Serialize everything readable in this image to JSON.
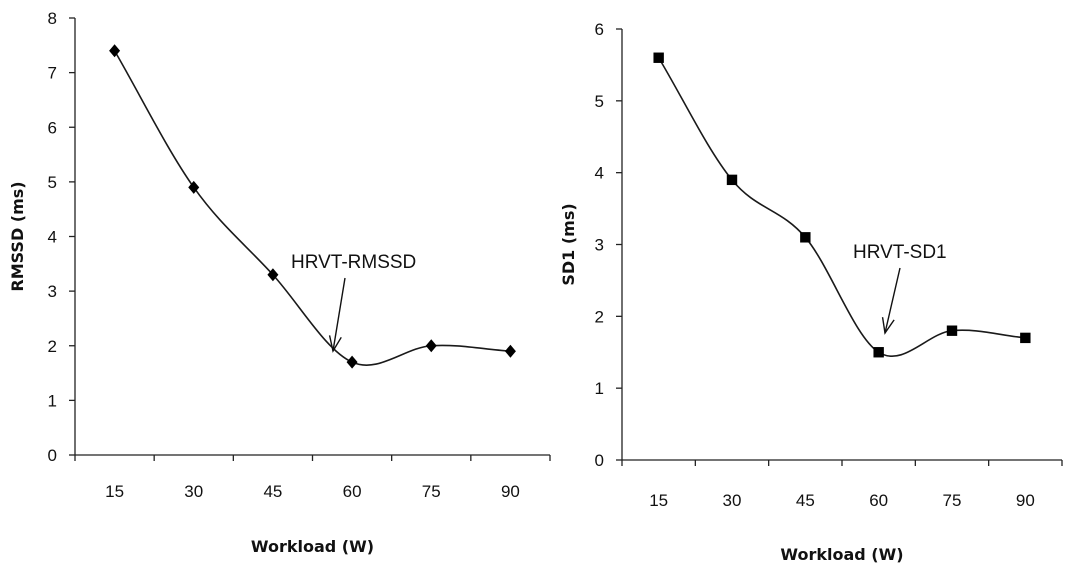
{
  "chart_data": [
    {
      "type": "line",
      "marker": "diamond",
      "x": [
        15,
        30,
        45,
        60,
        75,
        90
      ],
      "series": [
        {
          "values": [
            7.4,
            4.9,
            3.3,
            1.7,
            2.0,
            1.9
          ]
        }
      ],
      "xlabel": "Workload (W)",
      "ylabel": "RMSSD (ms)",
      "ylim": [
        0,
        8
      ],
      "yticks": [
        "0",
        "1",
        "2",
        "3",
        "4",
        "5",
        "6",
        "7",
        "8"
      ],
      "xticks": [
        "15",
        "30",
        "45",
        "60",
        "75",
        "90"
      ],
      "annotation": {
        "text": "HRVT-RMSSD",
        "points_to_x": 60
      },
      "line_color": "#1a1a1a",
      "grid": false,
      "legend": "none"
    },
    {
      "type": "line",
      "marker": "square",
      "x": [
        15,
        30,
        45,
        60,
        75,
        90
      ],
      "series": [
        {
          "values": [
            5.6,
            3.9,
            3.1,
            1.5,
            1.8,
            1.7
          ]
        }
      ],
      "xlabel": "Workload (W)",
      "ylabel": "SD1 (ms)",
      "ylim": [
        0,
        6
      ],
      "yticks": [
        "0",
        "1",
        "2",
        "3",
        "4",
        "5",
        "6"
      ],
      "xticks": [
        "15",
        "30",
        "45",
        "60",
        "75",
        "90"
      ],
      "annotation": {
        "text": "HRVT-SD1",
        "points_to_x": 60
      },
      "line_color": "#1a1a1a",
      "grid": false,
      "legend": "none"
    }
  ]
}
